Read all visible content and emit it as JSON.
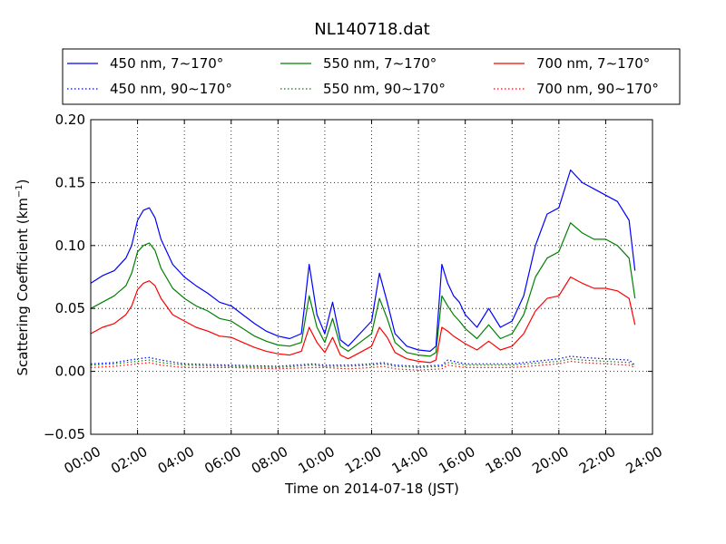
{
  "chart_data": {
    "type": "line",
    "title": "NL140718.dat",
    "xlabel": "Time on 2014-07-18 (JST)",
    "ylabel_main": "Scattering Coefficient (km",
    "ylabel_sup": "−1",
    "ylabel_end": ")",
    "xlim": [
      "00:00",
      "24:00"
    ],
    "ylim": [
      -0.05,
      0.2
    ],
    "x_ticks": [
      "00:00",
      "02:00",
      "04:00",
      "06:00",
      "08:00",
      "10:00",
      "12:00",
      "14:00",
      "16:00",
      "18:00",
      "20:00",
      "22:00",
      "24:00"
    ],
    "y_ticks": [
      "−0.05",
      "0.00",
      "0.05",
      "0.10",
      "0.15",
      "0.20"
    ],
    "grid": true,
    "legend_position": "top, 3 columns",
    "series": [
      {
        "name": "450 nm, 7∼170°",
        "color": "#0000ff",
        "style": "solid",
        "x": [
          "00:00",
          "00:30",
          "01:00",
          "01:30",
          "01:45",
          "02:00",
          "02:15",
          "02:30",
          "02:45",
          "03:00",
          "03:30",
          "04:00",
          "04:30",
          "05:00",
          "05:30",
          "06:00",
          "06:30",
          "07:00",
          "07:30",
          "08:00",
          "08:30",
          "09:00",
          "09:20",
          "09:40",
          "10:00",
          "10:20",
          "10:40",
          "11:00",
          "11:30",
          "12:00",
          "12:20",
          "12:40",
          "13:00",
          "13:30",
          "14:00",
          "14:30",
          "14:45",
          "15:00",
          "15:15",
          "15:30",
          "15:45",
          "16:00",
          "16:30",
          "17:00",
          "17:30",
          "18:00",
          "18:30",
          "19:00",
          "19:30",
          "20:00",
          "20:30",
          "21:00",
          "21:30",
          "22:00",
          "22:30",
          "23:00",
          "23:15"
        ],
        "values": [
          0.07,
          0.076,
          0.08,
          0.09,
          0.1,
          0.12,
          0.128,
          0.13,
          0.122,
          0.105,
          0.085,
          0.075,
          0.068,
          0.062,
          0.055,
          0.052,
          0.045,
          0.038,
          0.032,
          0.028,
          0.026,
          0.03,
          0.085,
          0.045,
          0.03,
          0.055,
          0.025,
          0.02,
          0.03,
          0.04,
          0.078,
          0.055,
          0.03,
          0.02,
          0.017,
          0.016,
          0.02,
          0.085,
          0.07,
          0.06,
          0.055,
          0.045,
          0.035,
          0.05,
          0.035,
          0.04,
          0.06,
          0.1,
          0.125,
          0.13,
          0.16,
          0.15,
          0.145,
          0.14,
          0.135,
          0.12,
          0.08
        ]
      },
      {
        "name": "550 nm, 7∼170°",
        "color": "#008000",
        "style": "solid",
        "x": [
          "00:00",
          "00:30",
          "01:00",
          "01:30",
          "01:45",
          "02:00",
          "02:15",
          "02:30",
          "02:45",
          "03:00",
          "03:30",
          "04:00",
          "04:30",
          "05:00",
          "05:30",
          "06:00",
          "06:30",
          "07:00",
          "07:30",
          "08:00",
          "08:30",
          "09:00",
          "09:20",
          "09:40",
          "10:00",
          "10:20",
          "10:40",
          "11:00",
          "11:30",
          "12:00",
          "12:20",
          "12:40",
          "13:00",
          "13:30",
          "14:00",
          "14:30",
          "14:45",
          "15:00",
          "15:15",
          "15:30",
          "15:45",
          "16:00",
          "16:30",
          "17:00",
          "17:30",
          "18:00",
          "18:30",
          "19:00",
          "19:30",
          "20:00",
          "20:30",
          "21:00",
          "21:30",
          "22:00",
          "22:30",
          "23:00",
          "23:15"
        ],
        "values": [
          0.05,
          0.055,
          0.06,
          0.068,
          0.078,
          0.095,
          0.1,
          0.102,
          0.096,
          0.082,
          0.066,
          0.058,
          0.052,
          0.048,
          0.042,
          0.04,
          0.034,
          0.028,
          0.024,
          0.021,
          0.02,
          0.023,
          0.06,
          0.035,
          0.023,
          0.042,
          0.02,
          0.016,
          0.023,
          0.03,
          0.058,
          0.042,
          0.023,
          0.015,
          0.013,
          0.012,
          0.015,
          0.06,
          0.052,
          0.045,
          0.04,
          0.034,
          0.026,
          0.037,
          0.026,
          0.03,
          0.045,
          0.075,
          0.09,
          0.095,
          0.118,
          0.11,
          0.105,
          0.105,
          0.1,
          0.09,
          0.058
        ]
      },
      {
        "name": "700 nm, 7∼170°",
        "color": "#ff0000",
        "style": "solid",
        "x": [
          "00:00",
          "00:30",
          "01:00",
          "01:30",
          "01:45",
          "02:00",
          "02:15",
          "02:30",
          "02:45",
          "03:00",
          "03:30",
          "04:00",
          "04:30",
          "05:00",
          "05:30",
          "06:00",
          "06:30",
          "07:00",
          "07:30",
          "08:00",
          "08:30",
          "09:00",
          "09:20",
          "09:40",
          "10:00",
          "10:20",
          "10:40",
          "11:00",
          "11:30",
          "12:00",
          "12:20",
          "12:40",
          "13:00",
          "13:30",
          "14:00",
          "14:30",
          "14:45",
          "15:00",
          "15:15",
          "15:30",
          "15:45",
          "16:00",
          "16:30",
          "17:00",
          "17:30",
          "18:00",
          "18:30",
          "19:00",
          "19:30",
          "20:00",
          "20:30",
          "21:00",
          "21:30",
          "22:00",
          "22:30",
          "23:00",
          "23:15"
        ],
        "values": [
          0.03,
          0.035,
          0.038,
          0.045,
          0.052,
          0.065,
          0.07,
          0.072,
          0.068,
          0.058,
          0.045,
          0.04,
          0.035,
          0.032,
          0.028,
          0.027,
          0.023,
          0.019,
          0.016,
          0.014,
          0.013,
          0.016,
          0.035,
          0.023,
          0.015,
          0.027,
          0.013,
          0.01,
          0.015,
          0.02,
          0.035,
          0.027,
          0.015,
          0.01,
          0.008,
          0.007,
          0.009,
          0.035,
          0.032,
          0.028,
          0.025,
          0.022,
          0.017,
          0.024,
          0.017,
          0.02,
          0.03,
          0.048,
          0.058,
          0.06,
          0.075,
          0.07,
          0.066,
          0.066,
          0.064,
          0.058,
          0.037
        ]
      },
      {
        "name": "450 nm, 90∼170°",
        "color": "#0000ff",
        "style": "dotted",
        "x": [
          "00:00",
          "01:00",
          "02:00",
          "02:30",
          "03:00",
          "04:00",
          "06:00",
          "08:00",
          "09:30",
          "10:00",
          "11:00",
          "12:00",
          "12:30",
          "13:00",
          "14:00",
          "15:00",
          "15:15",
          "16:00",
          "18:00",
          "20:00",
          "20:30",
          "21:00",
          "22:00",
          "23:00",
          "23:15"
        ],
        "values": [
          0.006,
          0.007,
          0.01,
          0.011,
          0.009,
          0.006,
          0.005,
          0.004,
          0.006,
          0.005,
          0.005,
          0.006,
          0.007,
          0.005,
          0.004,
          0.005,
          0.009,
          0.006,
          0.006,
          0.01,
          0.012,
          0.011,
          0.01,
          0.009,
          0.005
        ]
      },
      {
        "name": "550 nm, 90∼170°",
        "color": "#008000",
        "style": "dotted",
        "x": [
          "00:00",
          "01:00",
          "02:00",
          "02:30",
          "03:00",
          "04:00",
          "06:00",
          "08:00",
          "09:30",
          "10:00",
          "11:00",
          "12:00",
          "12:30",
          "13:00",
          "14:00",
          "15:00",
          "15:15",
          "16:00",
          "18:00",
          "20:00",
          "20:30",
          "21:00",
          "22:00",
          "23:00",
          "23:15"
        ],
        "values": [
          0.005,
          0.006,
          0.008,
          0.009,
          0.007,
          0.005,
          0.004,
          0.003,
          0.005,
          0.004,
          0.004,
          0.005,
          0.006,
          0.004,
          0.003,
          0.004,
          0.007,
          0.005,
          0.005,
          0.008,
          0.01,
          0.009,
          0.008,
          0.007,
          0.004
        ]
      },
      {
        "name": "700 nm, 90∼170°",
        "color": "#ff0000",
        "style": "dotted",
        "x": [
          "00:00",
          "01:00",
          "02:00",
          "02:30",
          "03:00",
          "04:00",
          "06:00",
          "08:00",
          "09:30",
          "10:00",
          "11:00",
          "12:00",
          "12:30",
          "13:00",
          "14:00",
          "15:00",
          "15:15",
          "16:00",
          "18:00",
          "20:00",
          "20:30",
          "21:00",
          "22:00",
          "23:00",
          "23:15"
        ],
        "values": [
          0.003,
          0.004,
          0.006,
          0.007,
          0.005,
          0.003,
          0.003,
          0.002,
          0.003,
          0.003,
          0.002,
          0.003,
          0.004,
          0.002,
          0.001,
          0.002,
          0.005,
          0.003,
          0.003,
          0.006,
          0.008,
          0.007,
          0.006,
          0.005,
          0.003
        ]
      }
    ]
  }
}
